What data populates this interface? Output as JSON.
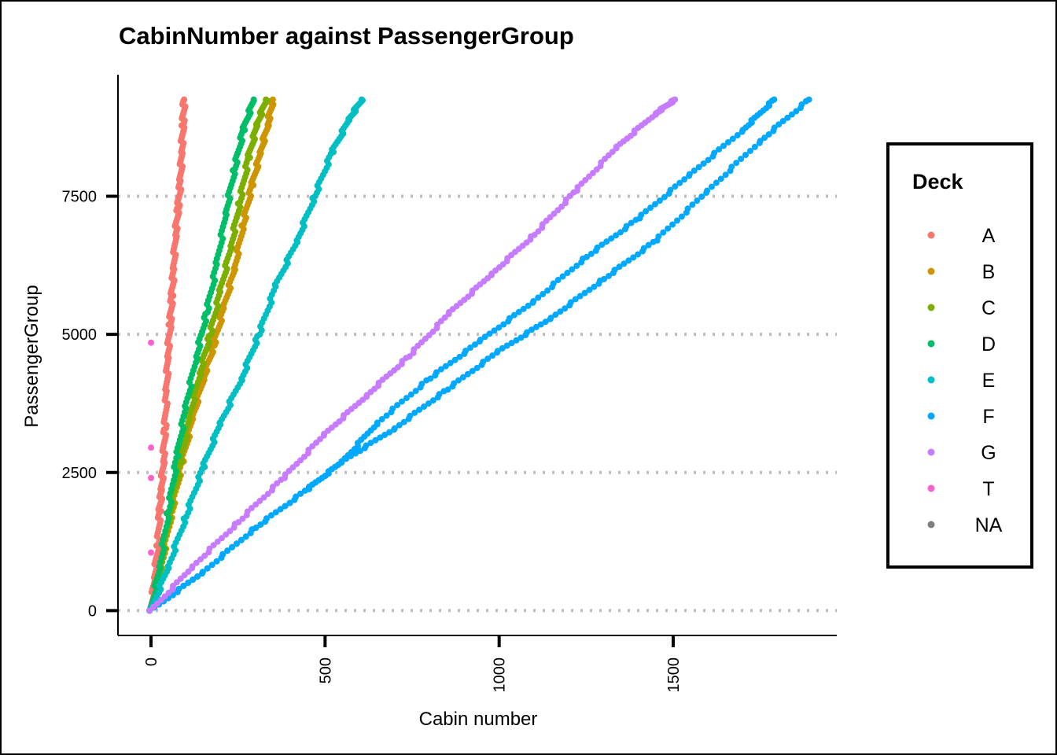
{
  "chart_data": {
    "type": "scatter",
    "title": "CabinNumber against PassengerGroup",
    "xlabel": "Cabin number",
    "ylabel": "PassengerGroup",
    "xlim": [
      -95,
      1970
    ],
    "ylim": [
      -450,
      9700
    ],
    "x_ticks": [
      0,
      500,
      1000,
      1500
    ],
    "y_ticks": [
      0,
      2500,
      5000,
      7500
    ],
    "x_tick_labels": [
      "0",
      "500",
      "1000",
      "1500"
    ],
    "y_tick_labels": [
      "0",
      "2500",
      "5000",
      "7500"
    ],
    "grid": "horizontal dotted major lines",
    "legend": {
      "title": "Deck",
      "placement": "right",
      "entries": [
        "A",
        "B",
        "C",
        "D",
        "E",
        "F",
        "G",
        "T",
        "NA"
      ]
    },
    "series": [
      {
        "name": "A",
        "color": "#F8766D",
        "points": [
          [
            0,
            0
          ],
          [
            10,
            600
          ],
          [
            20,
            1200
          ],
          [
            25,
            1800
          ],
          [
            30,
            2200
          ],
          [
            35,
            2700
          ],
          [
            40,
            3300
          ],
          [
            45,
            4000
          ],
          [
            48,
            4600
          ],
          [
            55,
            5200
          ],
          [
            60,
            5700
          ],
          [
            65,
            6200
          ],
          [
            70,
            6800
          ],
          [
            78,
            7300
          ],
          [
            85,
            7800
          ],
          [
            88,
            8300
          ],
          [
            92,
            8800
          ],
          [
            95,
            9250
          ]
        ]
      },
      {
        "name": "B",
        "color": "#CD9600",
        "points": [
          [
            0,
            0
          ],
          [
            30,
            800
          ],
          [
            60,
            1800
          ],
          [
            90,
            2700
          ],
          [
            120,
            3500
          ],
          [
            150,
            4200
          ],
          [
            180,
            4800
          ],
          [
            210,
            5500
          ],
          [
            240,
            6200
          ],
          [
            265,
            7000
          ],
          [
            290,
            7700
          ],
          [
            315,
            8300
          ],
          [
            335,
            8800
          ],
          [
            350,
            9250
          ]
        ]
      },
      {
        "name": "C",
        "color": "#7CAE00",
        "points": [
          [
            0,
            0
          ],
          [
            28,
            800
          ],
          [
            55,
            1800
          ],
          [
            85,
            2700
          ],
          [
            110,
            3500
          ],
          [
            140,
            4300
          ],
          [
            170,
            5000
          ],
          [
            200,
            5800
          ],
          [
            230,
            6600
          ],
          [
            255,
            7400
          ],
          [
            280,
            8200
          ],
          [
            305,
            8800
          ],
          [
            330,
            9250
          ]
        ]
      },
      {
        "name": "D",
        "color": "#00BE67",
        "points": [
          [
            0,
            0
          ],
          [
            25,
            800
          ],
          [
            50,
            1800
          ],
          [
            75,
            2800
          ],
          [
            100,
            3700
          ],
          [
            130,
            4600
          ],
          [
            160,
            5400
          ],
          [
            190,
            6300
          ],
          [
            215,
            7200
          ],
          [
            240,
            8000
          ],
          [
            265,
            8700
          ],
          [
            295,
            9250
          ]
        ]
      },
      {
        "name": "E",
        "color": "#00BFC4",
        "points": [
          [
            0,
            0
          ],
          [
            50,
            800
          ],
          [
            100,
            1700
          ],
          [
            150,
            2600
          ],
          [
            200,
            3400
          ],
          [
            260,
            4200
          ],
          [
            310,
            5000
          ],
          [
            360,
            5900
          ],
          [
            420,
            6700
          ],
          [
            470,
            7500
          ],
          [
            520,
            8300
          ],
          [
            570,
            8900
          ],
          [
            605,
            9250
          ]
        ]
      },
      {
        "name": "F",
        "color": "#00A9FF",
        "points": [
          [
            0,
            0
          ],
          [
            150,
            700
          ],
          [
            300,
            1500
          ],
          [
            450,
            2200
          ],
          [
            550,
            2700
          ],
          [
            650,
            3400
          ],
          [
            800,
            4200
          ],
          [
            950,
            4900
          ],
          [
            1100,
            5600
          ],
          [
            1250,
            6400
          ],
          [
            1400,
            7100
          ],
          [
            1550,
            7900
          ],
          [
            1700,
            8700
          ],
          [
            1790,
            9250
          ]
        ]
      },
      {
        "name": "F",
        "color": "#00A9FF",
        "points": [
          [
            0,
            0
          ],
          [
            150,
            700
          ],
          [
            300,
            1500
          ],
          [
            450,
            2200
          ],
          [
            550,
            2700
          ],
          [
            700,
            3300
          ],
          [
            850,
            4000
          ],
          [
            1000,
            4700
          ],
          [
            1150,
            5300
          ],
          [
            1300,
            6000
          ],
          [
            1450,
            6700
          ],
          [
            1600,
            7600
          ],
          [
            1750,
            8500
          ],
          [
            1890,
            9250
          ]
        ]
      },
      {
        "name": "G",
        "color": "#C77CFF",
        "points": [
          [
            0,
            0
          ],
          [
            120,
            800
          ],
          [
            250,
            1600
          ],
          [
            380,
            2400
          ],
          [
            500,
            3200
          ],
          [
            620,
            3900
          ],
          [
            740,
            4600
          ],
          [
            860,
            5400
          ],
          [
            980,
            6100
          ],
          [
            1100,
            6800
          ],
          [
            1220,
            7600
          ],
          [
            1340,
            8400
          ],
          [
            1450,
            9000
          ],
          [
            1505,
            9250
          ]
        ]
      },
      {
        "name": "T",
        "color": "#FF61CC",
        "points": [
          [
            0,
            1050
          ],
          [
            0,
            2400
          ],
          [
            0,
            2950
          ],
          [
            0,
            4850
          ]
        ]
      },
      {
        "name": "NA",
        "color": "#7F7F7F",
        "points": []
      }
    ]
  }
}
